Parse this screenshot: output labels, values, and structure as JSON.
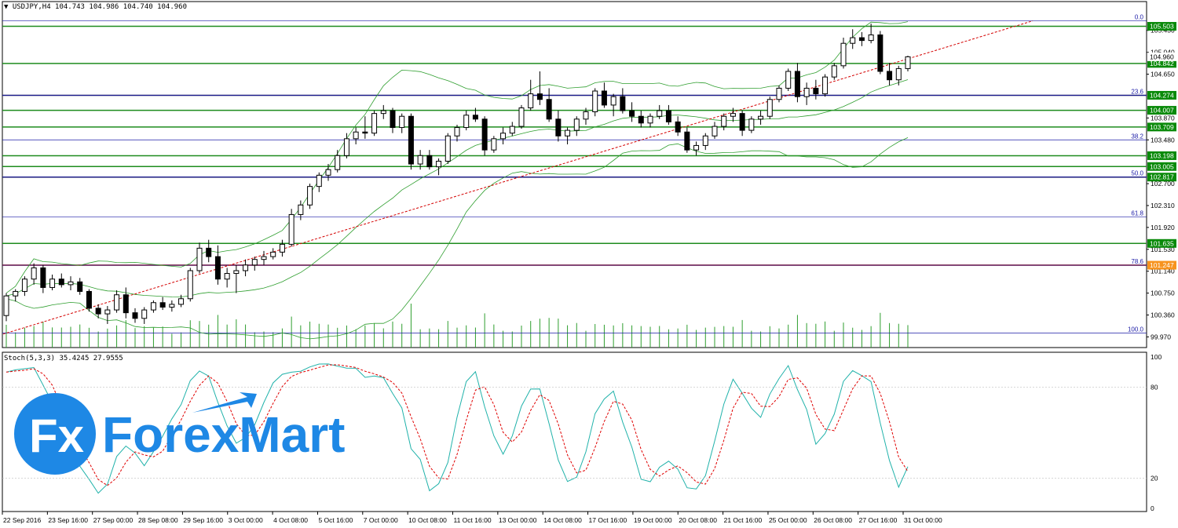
{
  "header": {
    "symbol": "USDJPY,H4",
    "ohlc": "104.743 104.986 104.740 104.960",
    "stoch_label": "Stoch(5,3,3) 35.4245 27.9555"
  },
  "logo": {
    "text": "ForexMart",
    "badge": "Fx"
  },
  "colors": {
    "bull_body": "#ffffff",
    "bear_body": "#000000",
    "candle_outline": "#000000",
    "bollinger": "#2e9e2e",
    "volume": "#2e9e2e",
    "trendline": "#d40000",
    "sr_green": "#1e8c1e",
    "fib_blue": "#1a1aa6",
    "fib_dark": "#8b0000",
    "stoch_main": "#20b2aa",
    "stoch_signal": "#e00000",
    "label_green_bg": "#0a8a0a",
    "label_orange_bg": "#f7931e",
    "logo_blue": "#1e88e5"
  },
  "chart_data": {
    "type": "candlestick",
    "title": "USDJPY,H4",
    "ylim": [
      99.78,
      105.72
    ],
    "price_ticks": [
      "105.430",
      "105.040",
      "104.650",
      "103.870",
      "103.480",
      "102.700",
      "102.310",
      "101.920",
      "101.530",
      "101.140",
      "100.750",
      "100.360",
      "99.970"
    ],
    "time_labels": [
      "22 Sep 2016",
      "23 Sep 16:00",
      "27 Sep 00:00",
      "28 Sep 08:00",
      "29 Sep 16:00",
      "3 Oct 00:00",
      "4 Oct 08:00",
      "5 Oct 16:00",
      "7 Oct 00:00",
      "10 Oct 08:00",
      "11 Oct 16:00",
      "13 Oct 00:00",
      "14 Oct 08:00",
      "17 Oct 16:00",
      "19 Oct 00:00",
      "20 Oct 08:00",
      "21 Oct 16:00",
      "25 Oct 00:00",
      "26 Oct 08:00",
      "27 Oct 16:00",
      "31 Oct 00:00"
    ],
    "horizontal_levels": [
      {
        "price": 105.503,
        "label": "105.503",
        "kind": "sr",
        "highlight": "green"
      },
      {
        "price": 104.842,
        "label": "104.842",
        "kind": "sr",
        "highlight": "green"
      },
      {
        "price": 104.274,
        "label": "104.274",
        "kind": "fib",
        "highlight": "green"
      },
      {
        "price": 104.007,
        "label": "104.007",
        "kind": "sr",
        "highlight": "green"
      },
      {
        "price": 103.709,
        "label": "103.709",
        "kind": "sr",
        "highlight": "green"
      },
      {
        "price": 103.198,
        "label": "103.198",
        "kind": "sr",
        "highlight": "green"
      },
      {
        "price": 103.005,
        "label": "103.005",
        "kind": "sr",
        "highlight": "green"
      },
      {
        "price": 102.817,
        "label": "102.817",
        "kind": "fib",
        "highlight": "green"
      },
      {
        "price": 101.635,
        "label": "101.635",
        "kind": "sr",
        "highlight": "green"
      },
      {
        "price": 101.247,
        "label": "101.247",
        "kind": "fibdark",
        "highlight": "orange"
      }
    ],
    "current_price": {
      "price": 104.96,
      "label": "104.960"
    },
    "fib_levels": [
      {
        "label": "0.0",
        "price": 105.6
      },
      {
        "label": "23.6",
        "price": 104.274
      },
      {
        "label": "38.2",
        "price": 103.48
      },
      {
        "label": "50.0",
        "price": 102.817
      },
      {
        "label": "61.8",
        "price": 102.11
      },
      {
        "label": "78.6",
        "price": 101.247
      },
      {
        "label": "100.0",
        "price": 100.04
      }
    ],
    "candles": [
      [
        100.35,
        100.75,
        100.25,
        100.7
      ],
      [
        100.7,
        100.82,
        100.6,
        100.78
      ],
      [
        100.78,
        101.05,
        100.7,
        101.0
      ],
      [
        101.0,
        101.28,
        100.9,
        101.2
      ],
      [
        101.2,
        101.25,
        100.75,
        100.85
      ],
      [
        100.85,
        101.08,
        100.8,
        101.0
      ],
      [
        101.0,
        101.1,
        100.85,
        100.9
      ],
      [
        100.9,
        101.05,
        100.8,
        100.95
      ],
      [
        100.95,
        101.02,
        100.72,
        100.78
      ],
      [
        100.78,
        100.82,
        100.42,
        100.48
      ],
      [
        100.48,
        100.55,
        100.3,
        100.38
      ],
      [
        100.38,
        100.52,
        100.2,
        100.45
      ],
      [
        100.45,
        100.8,
        100.4,
        100.72
      ],
      [
        100.72,
        100.85,
        100.3,
        100.4
      ],
      [
        100.4,
        100.48,
        100.22,
        100.3
      ],
      [
        100.3,
        100.5,
        100.2,
        100.45
      ],
      [
        100.45,
        100.62,
        100.4,
        100.58
      ],
      [
        100.58,
        100.68,
        100.45,
        100.5
      ],
      [
        100.5,
        100.62,
        100.42,
        100.55
      ],
      [
        100.55,
        100.72,
        100.5,
        100.65
      ],
      [
        100.65,
        101.2,
        100.6,
        101.15
      ],
      [
        101.15,
        101.65,
        101.1,
        101.55
      ],
      [
        101.55,
        101.7,
        101.3,
        101.4
      ],
      [
        101.4,
        101.6,
        100.9,
        101.0
      ],
      [
        101.0,
        101.2,
        100.85,
        101.1
      ],
      [
        101.1,
        101.25,
        100.75,
        101.15
      ],
      [
        101.15,
        101.35,
        101.05,
        101.25
      ],
      [
        101.25,
        101.4,
        101.15,
        101.35
      ],
      [
        101.35,
        101.5,
        101.25,
        101.4
      ],
      [
        101.4,
        101.55,
        101.35,
        101.48
      ],
      [
        101.48,
        101.7,
        101.4,
        101.62
      ],
      [
        101.62,
        102.25,
        101.58,
        102.15
      ],
      [
        102.15,
        102.4,
        102.05,
        102.32
      ],
      [
        102.32,
        102.7,
        102.25,
        102.65
      ],
      [
        102.65,
        102.9,
        102.55,
        102.85
      ],
      [
        102.85,
        103.05,
        102.75,
        102.95
      ],
      [
        102.95,
        103.3,
        102.9,
        103.2
      ],
      [
        103.2,
        103.6,
        103.15,
        103.5
      ],
      [
        103.5,
        103.7,
        103.4,
        103.62
      ],
      [
        103.62,
        103.9,
        103.5,
        103.6
      ],
      [
        103.6,
        104.0,
        103.55,
        103.95
      ],
      [
        103.95,
        104.1,
        103.85,
        104.0
      ],
      [
        104.0,
        104.05,
        103.6,
        103.7
      ],
      [
        103.7,
        103.95,
        103.6,
        103.9
      ],
      [
        103.9,
        103.95,
        102.95,
        103.05
      ],
      [
        103.05,
        103.3,
        102.95,
        103.2
      ],
      [
        103.2,
        103.3,
        102.95,
        103.0
      ],
      [
        103.0,
        103.15,
        102.85,
        103.1
      ],
      [
        103.1,
        103.6,
        103.05,
        103.55
      ],
      [
        103.55,
        103.75,
        103.45,
        103.7
      ],
      [
        103.7,
        104.0,
        103.65,
        103.92
      ],
      [
        103.92,
        104.05,
        103.8,
        103.85
      ],
      [
        103.85,
        103.9,
        103.2,
        103.3
      ],
      [
        103.3,
        103.55,
        103.25,
        103.5
      ],
      [
        103.5,
        103.7,
        103.4,
        103.6
      ],
      [
        103.6,
        103.8,
        103.55,
        103.72
      ],
      [
        103.72,
        104.1,
        103.68,
        104.05
      ],
      [
        104.05,
        104.55,
        104.0,
        104.3
      ],
      [
        104.3,
        104.7,
        104.1,
        104.2
      ],
      [
        104.2,
        104.4,
        103.8,
        103.85
      ],
      [
        103.85,
        104.0,
        103.45,
        103.55
      ],
      [
        103.55,
        103.7,
        103.4,
        103.65
      ],
      [
        103.65,
        103.9,
        103.55,
        103.85
      ],
      [
        103.85,
        104.05,
        103.75,
        103.98
      ],
      [
        103.98,
        104.4,
        103.9,
        104.35
      ],
      [
        104.35,
        104.5,
        104.05,
        104.1
      ],
      [
        104.1,
        104.3,
        103.9,
        104.25
      ],
      [
        104.25,
        104.4,
        103.95,
        104.0
      ],
      [
        104.0,
        104.15,
        103.8,
        103.9
      ],
      [
        103.9,
        104.0,
        103.7,
        103.78
      ],
      [
        103.78,
        103.95,
        103.7,
        103.9
      ],
      [
        103.9,
        104.1,
        103.85,
        104.0
      ],
      [
        104.0,
        104.1,
        103.75,
        103.8
      ],
      [
        103.8,
        103.9,
        103.55,
        103.62
      ],
      [
        103.62,
        103.7,
        103.25,
        103.3
      ],
      [
        103.3,
        103.45,
        103.2,
        103.38
      ],
      [
        103.38,
        103.6,
        103.3,
        103.55
      ],
      [
        103.55,
        103.8,
        103.5,
        103.72
      ],
      [
        103.72,
        103.95,
        103.65,
        103.9
      ],
      [
        103.9,
        104.05,
        103.8,
        103.95
      ],
      [
        103.95,
        104.0,
        103.55,
        103.65
      ],
      [
        103.65,
        103.9,
        103.6,
        103.85
      ],
      [
        103.85,
        104.0,
        103.75,
        103.9
      ],
      [
        103.9,
        104.25,
        103.85,
        104.2
      ],
      [
        104.2,
        104.45,
        104.15,
        104.4
      ],
      [
        104.4,
        104.75,
        104.35,
        104.7
      ],
      [
        104.7,
        104.85,
        104.15,
        104.25
      ],
      [
        104.25,
        104.5,
        104.1,
        104.4
      ],
      [
        104.4,
        104.55,
        104.2,
        104.3
      ],
      [
        104.3,
        104.65,
        104.25,
        104.6
      ],
      [
        104.6,
        104.85,
        104.55,
        104.8
      ],
      [
        104.8,
        105.3,
        104.75,
        105.2
      ],
      [
        105.2,
        105.45,
        105.1,
        105.3
      ],
      [
        105.3,
        105.4,
        105.15,
        105.25
      ],
      [
        105.25,
        105.55,
        105.2,
        105.35
      ],
      [
        105.35,
        105.42,
        104.65,
        104.7
      ],
      [
        104.7,
        104.85,
        104.45,
        104.55
      ],
      [
        104.55,
        104.8,
        104.45,
        104.75
      ],
      [
        104.75,
        104.98,
        104.7,
        104.96
      ]
    ],
    "stoch_ylim": [
      0,
      100
    ],
    "stoch_ticks": [
      100,
      80,
      20,
      0
    ]
  }
}
